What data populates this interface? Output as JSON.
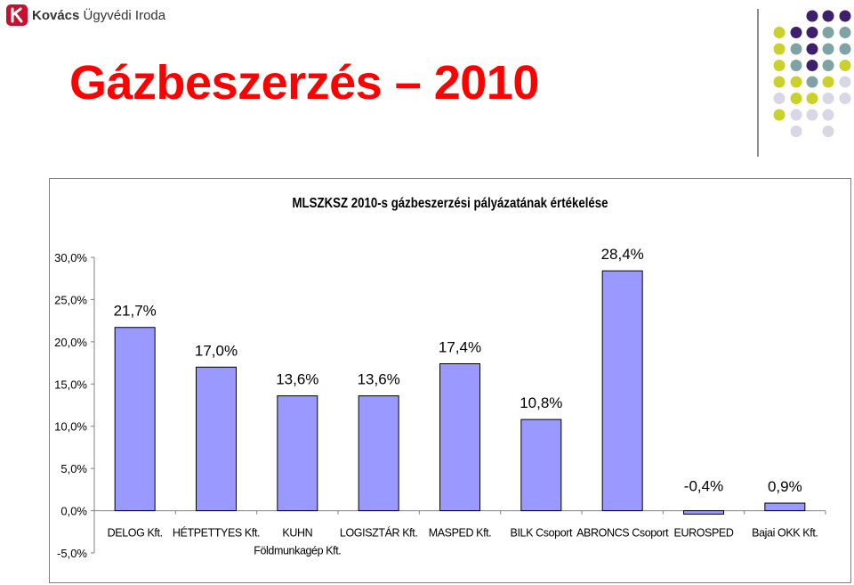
{
  "header": {
    "logo_bold": "Kovács",
    "logo_rest": "Ügyvédi Iroda",
    "slide_title": "Gázbeszerzés – 2010"
  },
  "decoration": {
    "dot_colors": {
      "purple": "#3d1f6b",
      "teal": "#7fa3a5",
      "lime": "#c9d12a",
      "lavender": "#d7d7e6"
    }
  },
  "colors": {
    "bar_fill": "#9999ff",
    "bar_stroke": "#000000",
    "title_red": "#ff0000"
  },
  "chart_data": {
    "type": "bar",
    "title": "MLSZKSZ 2010-s gázbeszerzési pályázatának értékelése",
    "categories": [
      "DELOG Kft.",
      "HÉTPETTYES Kft.",
      "KUHN Földmunkagép Kft.",
      "LOGISZTÁR Kft.",
      "MASPED Kft.",
      "BILK Csoport",
      "ABRONCS Csoport",
      "EUROSPED",
      "Bajai OKK Kft."
    ],
    "category_lines": [
      [
        "DELOG Kft."
      ],
      [
        "HÉTPETTYES Kft."
      ],
      [
        "KUHN",
        "Földmunkagép Kft."
      ],
      [
        "LOGISZTÁR Kft."
      ],
      [
        "MASPED Kft."
      ],
      [
        "BILK Csoport"
      ],
      [
        "ABRONCS Csoport"
      ],
      [
        "EUROSPED"
      ],
      [
        "Bajai OKK Kft."
      ]
    ],
    "values": [
      21.7,
      17.0,
      13.6,
      13.6,
      17.4,
      10.8,
      28.4,
      -0.4,
      0.9
    ],
    "data_labels": [
      "21,7%",
      "17,0%",
      "13,6%",
      "13,6%",
      "17,4%",
      "10,8%",
      "28,4%",
      "-0,4%",
      "0,9%"
    ],
    "y_ticks": [
      "30,0%",
      "25,0%",
      "20,0%",
      "15,0%",
      "10,0%",
      "5,0%",
      "0,0%",
      "-5,0%"
    ],
    "y_tick_values": [
      30,
      25,
      20,
      15,
      10,
      5,
      0,
      -5
    ],
    "ylim": [
      -5,
      30
    ],
    "xlabel": "",
    "ylabel": "",
    "grid": false,
    "legend": "none"
  }
}
